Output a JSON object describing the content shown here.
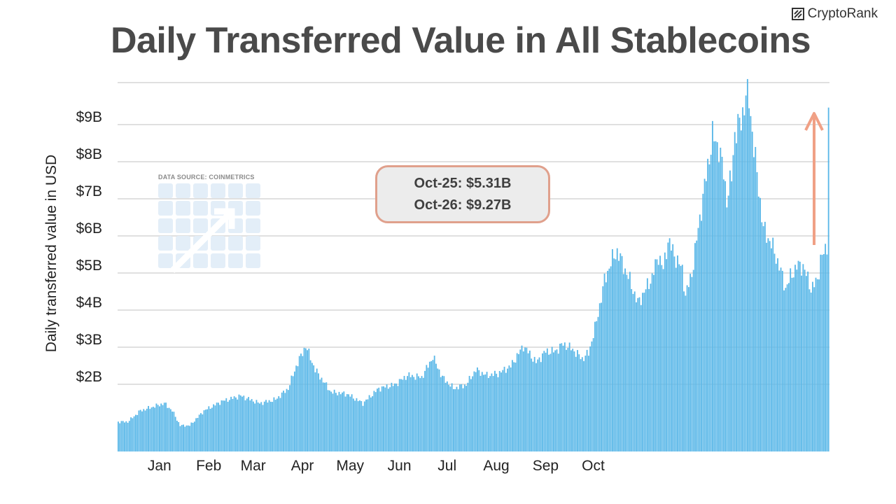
{
  "header": {
    "title": "Daily Transferred Value in All Stablecoins",
    "brand": "CryptoRank"
  },
  "watermark": {
    "label": "DATA SOURCE: COINMETRICS",
    "logo_icon": "coinmetrics-grid-logo-icon"
  },
  "callout": {
    "line1": "Oct-25: $5.31B",
    "line2": "Oct-26: $9.27B"
  },
  "colors": {
    "bar": "#5bb8e8",
    "bar_edge": "#4aa6d8",
    "grid": "#d6d6d6",
    "arrow": "#f0a085",
    "title": "#4a4a4a"
  },
  "chart_data": {
    "type": "bar",
    "ylabel": "Daily transferred value in USD",
    "yunit": "B",
    "ylim": [
      0,
      10
    ],
    "yticks": [
      2,
      3,
      4,
      5,
      6,
      7,
      8,
      9
    ],
    "ytick_labels": [
      "$2B",
      "$3B",
      "$4B",
      "$5B",
      "$6B",
      "$7B",
      "$8B",
      "$9B"
    ],
    "xticks": [
      "Jan",
      "Feb",
      "Mar",
      "Apr",
      "May",
      "Jun",
      "Jul",
      "Aug",
      "Sep",
      "Oct"
    ],
    "grid": true,
    "anchors": [
      [
        1,
        0.8
      ],
      [
        7,
        0.8
      ],
      [
        15,
        1.1
      ],
      [
        30,
        1.3
      ],
      [
        35,
        1.1
      ],
      [
        40,
        0.7
      ],
      [
        46,
        0.7
      ],
      [
        55,
        1.1
      ],
      [
        66,
        1.35
      ],
      [
        78,
        1.5
      ],
      [
        90,
        1.3
      ],
      [
        100,
        1.4
      ],
      [
        108,
        1.7
      ],
      [
        113,
        2.3
      ],
      [
        119,
        2.85
      ],
      [
        125,
        2.2
      ],
      [
        135,
        1.6
      ],
      [
        145,
        1.55
      ],
      [
        155,
        1.3
      ],
      [
        165,
        1.7
      ],
      [
        175,
        1.8
      ],
      [
        183,
        2.05
      ],
      [
        192,
        2.0
      ],
      [
        199,
        2.55
      ],
      [
        205,
        2.0
      ],
      [
        212,
        1.7
      ],
      [
        220,
        1.8
      ],
      [
        226,
        2.2
      ],
      [
        233,
        2.05
      ],
      [
        240,
        2.1
      ],
      [
        248,
        2.3
      ],
      [
        256,
        2.85
      ],
      [
        264,
        2.4
      ],
      [
        270,
        2.7
      ],
      [
        276,
        2.7
      ],
      [
        281,
        2.9
      ],
      [
        287,
        2.75
      ],
      [
        293,
        2.5
      ],
      [
        297,
        2.65
      ],
      [
        302,
        3.5
      ],
      [
        307,
        4.6
      ],
      [
        311,
        5.1
      ],
      [
        315,
        5.4
      ],
      [
        319,
        5.0
      ],
      [
        323,
        4.6
      ],
      [
        328,
        4.0
      ],
      [
        332,
        4.3
      ],
      [
        337,
        4.7
      ],
      [
        341,
        5.3
      ],
      [
        344,
        4.9
      ],
      [
        347,
        5.7
      ],
      [
        352,
        5.2
      ],
      [
        356,
        4.9
      ],
      [
        358,
        4.2
      ],
      [
        362,
        4.8
      ],
      [
        366,
        6.0
      ],
      [
        372,
        7.7
      ],
      [
        375,
        8.5
      ],
      [
        379,
        8.2
      ],
      [
        382,
        7.5
      ],
      [
        384,
        6.8
      ],
      [
        387,
        7.4
      ],
      [
        389,
        8.6
      ],
      [
        393,
        8.9
      ],
      [
        396,
        9.6
      ],
      [
        398,
        9.5
      ],
      [
        401,
        8.2
      ],
      [
        404,
        7.1
      ],
      [
        407,
        6.0
      ],
      [
        412,
        5.6
      ],
      [
        417,
        5.0
      ],
      [
        421,
        4.4
      ],
      [
        424,
        4.7
      ],
      [
        428,
        5.0
      ],
      [
        432,
        5.0
      ],
      [
        437,
        4.4
      ],
      [
        441,
        4.6
      ],
      [
        443,
        5.2
      ],
      [
        446,
        5.4
      ],
      [
        447,
        5.31
      ],
      [
        448,
        9.27
      ]
    ],
    "annotations": [
      "Oct-25: $5.31B",
      "Oct-26: $9.27B"
    ]
  }
}
